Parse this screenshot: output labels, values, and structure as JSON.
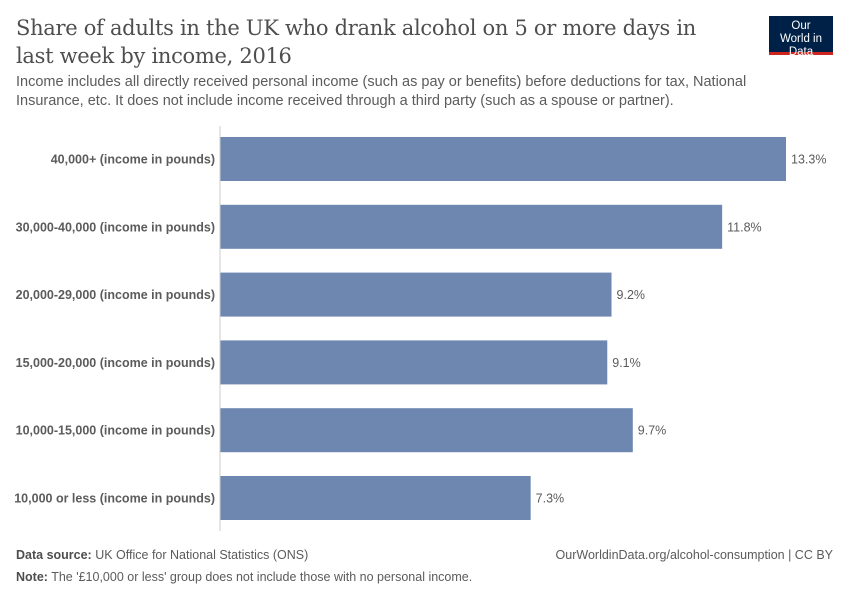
{
  "header": {
    "title": "Share of adults in the UK who drank alcohol on 5 or more days in last week by income, 2016",
    "subtitle": "Income includes all directly received personal income (such as pay or benefits) before deductions for tax, National Insurance, etc. It does not include income received through a third party (such as a spouse or partner).",
    "logo": "Our World in Data"
  },
  "chart_data": {
    "type": "bar",
    "orientation": "horizontal",
    "categories": [
      "40,000+ (income in pounds)",
      "30,000-40,000 (income in pounds)",
      "20,000-29,000 (income in pounds)",
      "15,000-20,000 (income in pounds)",
      "10,000-15,000 (income in pounds)",
      "10,000 or less (income in pounds)"
    ],
    "values": [
      13.3,
      11.8,
      9.2,
      9.1,
      9.7,
      7.3
    ],
    "labels": [
      "13.3%",
      "11.8%",
      "9.2%",
      "9.1%",
      "9.7%",
      "7.3%"
    ],
    "unit": "%",
    "xlim": [
      0,
      13.3
    ],
    "grid": false,
    "bar_color": "#6d87b0"
  },
  "footer": {
    "source_label": "Data source:",
    "source": "UK Office for National Statistics (ONS)",
    "url": "OurWorldinData.org/alcohol-consumption | CC BY",
    "note_label": "Note:",
    "note": "The '£10,000 or less' group does not include those with no personal income."
  }
}
